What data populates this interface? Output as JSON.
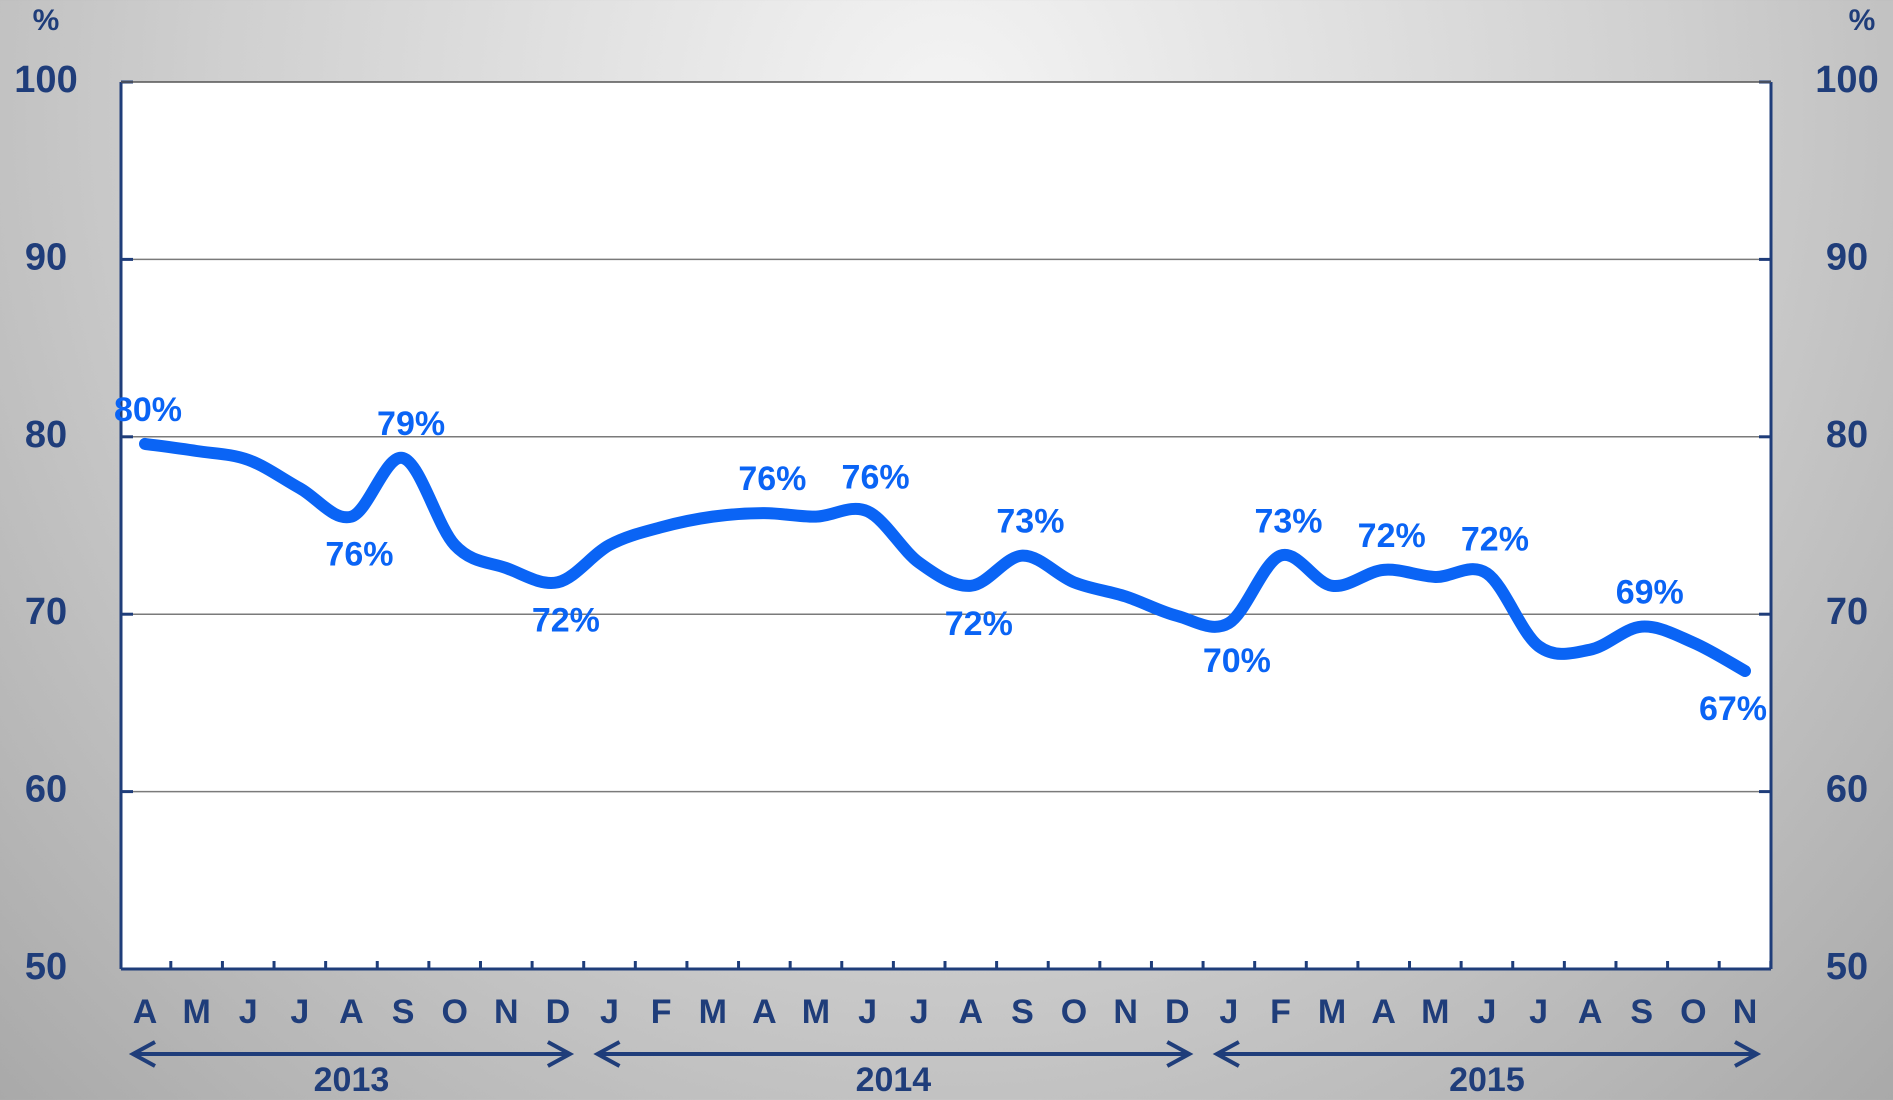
{
  "chart_data": {
    "type": "line",
    "y_unit_left": "%",
    "y_unit_right": "%",
    "categories": [
      "A",
      "M",
      "J",
      "J",
      "A",
      "S",
      "O",
      "N",
      "D",
      "J",
      "F",
      "M",
      "A",
      "M",
      "J",
      "J",
      "A",
      "S",
      "O",
      "N",
      "D",
      "J",
      "F",
      "M",
      "A",
      "M",
      "J",
      "J",
      "A",
      "S",
      "O",
      "N"
    ],
    "years": [
      "2013",
      "2014",
      "2015"
    ],
    "series": [
      {
        "name": null,
        "color": "#0a64f5",
        "values": [
          79.6,
          79.2,
          78.7,
          77.1,
          75.5,
          78.8,
          73.9,
          72.6,
          71.8,
          73.9,
          74.9,
          75.5,
          75.7,
          75.5,
          75.8,
          72.9,
          71.6,
          73.3,
          71.8,
          71.0,
          69.9,
          69.5,
          73.3,
          71.6,
          72.5,
          72.1,
          72.3,
          68.2,
          68.0,
          69.3,
          68.4,
          66.8
        ],
        "value_labels": [
          "80%",
          null,
          null,
          null,
          "76%",
          "79%",
          null,
          null,
          "72%",
          null,
          null,
          null,
          "76%",
          null,
          "76%",
          null,
          "72%",
          "73%",
          null,
          null,
          null,
          "70%",
          "73%",
          null,
          "72%",
          null,
          "72%",
          null,
          null,
          "69%",
          null,
          "67%"
        ]
      }
    ],
    "ylim": [
      50,
      100
    ],
    "yticks": [
      50,
      60,
      70,
      80,
      90,
      100
    ],
    "grid": true
  }
}
